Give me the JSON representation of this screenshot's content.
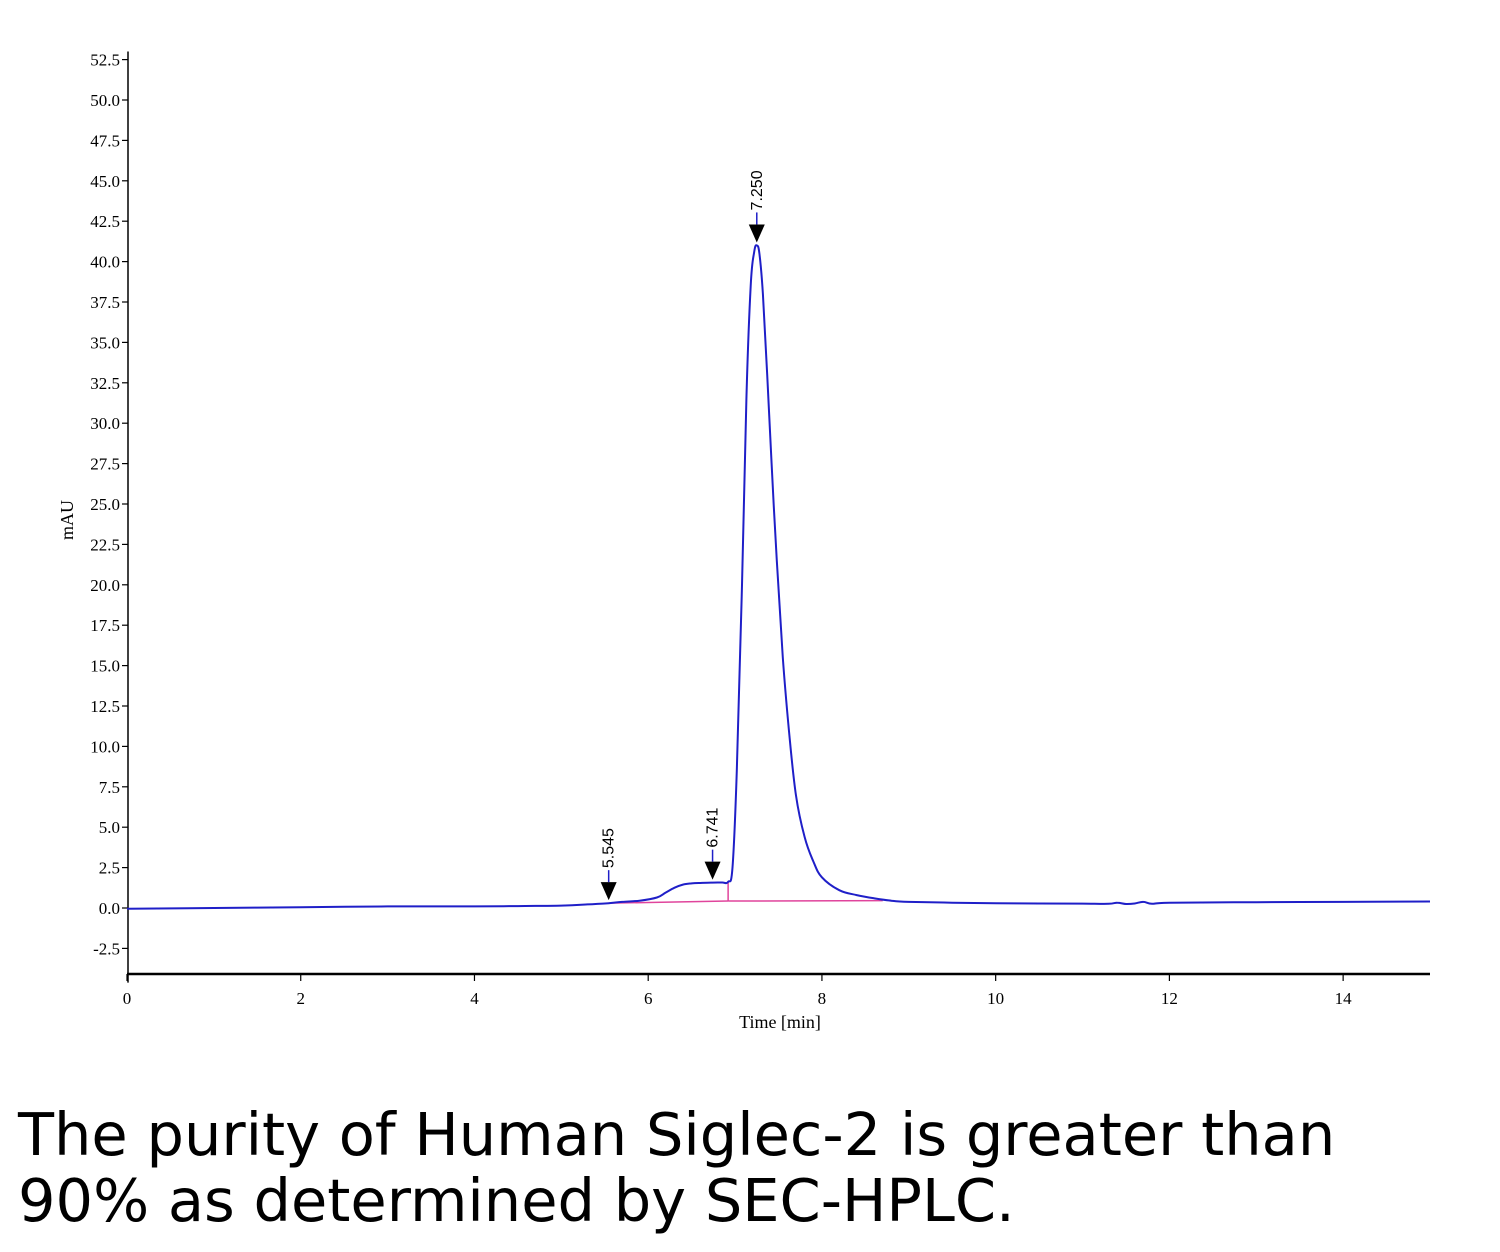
{
  "caption": {
    "line1": "The purity of Human Siglec-2 is greater than",
    "line2": "90% as determined by SEC-HPLC."
  },
  "colors": {
    "trace": "#1f1fc8",
    "baseline": "#e0449c",
    "axis": "#000000"
  },
  "chart_data": {
    "type": "line",
    "title": "",
    "xlabel": "Time [min]",
    "ylabel": "mAU",
    "xlim": [
      0,
      15
    ],
    "ylim": [
      -4,
      53
    ],
    "xticks": [
      0,
      2,
      4,
      6,
      8,
      10,
      12,
      14
    ],
    "xtick_labels": [
      "0",
      "2",
      "4",
      "6",
      "8",
      "10",
      "12",
      "14"
    ],
    "yticks": [
      -2.5,
      0.0,
      2.5,
      5.0,
      7.5,
      10.0,
      12.5,
      15.0,
      17.5,
      20.0,
      22.5,
      25.0,
      27.5,
      30.0,
      32.5,
      35.0,
      37.5,
      40.0,
      42.5,
      45.0,
      47.5,
      50.0,
      52.5
    ],
    "ytick_labels": [
      "-2.5",
      "0.0",
      "2.5",
      "5.0",
      "7.5",
      "10.0",
      "12.5",
      "15.0",
      "17.5",
      "20.0",
      "22.5",
      "25.0",
      "27.5",
      "30.0",
      "32.5",
      "35.0",
      "37.5",
      "40.0",
      "42.5",
      "45.0",
      "47.5",
      "50.0",
      "52.5"
    ],
    "grid": false,
    "series": [
      {
        "x": [
          0,
          1,
          2,
          3,
          4,
          4.5,
          5.0,
          5.3,
          5.545,
          5.7,
          5.9,
          6.1,
          6.2,
          6.3,
          6.4,
          6.5,
          6.6,
          6.741,
          6.85,
          6.92,
          6.97,
          7.02,
          7.08,
          7.13,
          7.18,
          7.22,
          7.25,
          7.28,
          7.32,
          7.37,
          7.42,
          7.48,
          7.55,
          7.62,
          7.7,
          7.8,
          7.9,
          8.0,
          8.2,
          8.4,
          8.6,
          8.8,
          9.0,
          9.5,
          10.0,
          10.5,
          11.0,
          11.3,
          11.4,
          11.5,
          11.6,
          11.7,
          11.8,
          12.0,
          13.0,
          14.0,
          15.0
        ],
        "y": [
          -0.05,
          0.0,
          0.05,
          0.1,
          0.1,
          0.12,
          0.15,
          0.22,
          0.3,
          0.38,
          0.45,
          0.65,
          0.95,
          1.25,
          1.45,
          1.52,
          1.55,
          1.57,
          1.58,
          1.62,
          2.5,
          8.5,
          20.0,
          31.5,
          38.5,
          40.6,
          41.0,
          40.5,
          38.0,
          33.0,
          27.5,
          21.5,
          15.5,
          11.0,
          7.0,
          4.4,
          2.9,
          1.9,
          1.1,
          0.8,
          0.6,
          0.45,
          0.38,
          0.33,
          0.3,
          0.28,
          0.27,
          0.26,
          0.33,
          0.25,
          0.28,
          0.38,
          0.26,
          0.33,
          0.36,
          0.38,
          0.4
        ]
      }
    ],
    "baseline_segments": [
      {
        "x": [
          5.545,
          6.92
        ],
        "y": [
          0.3,
          0.43
        ]
      },
      {
        "x": [
          6.92,
          8.7
        ],
        "y": [
          0.43,
          0.46
        ]
      }
    ],
    "peak_markers": [
      {
        "x": 5.545,
        "y": 0.3,
        "label": "5.545"
      },
      {
        "x": 6.741,
        "y": 1.57,
        "label": "6.741"
      },
      {
        "x": 7.25,
        "y": 41.0,
        "label": "7.250"
      }
    ]
  }
}
